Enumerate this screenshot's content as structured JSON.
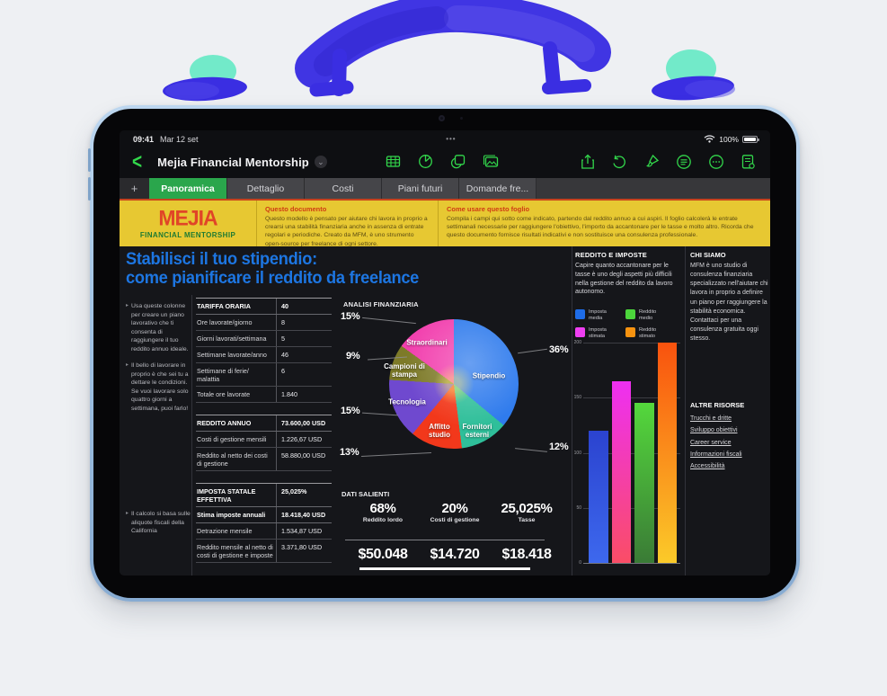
{
  "status_bar": {
    "time": "09:41",
    "date": "Mar 12 set",
    "dots": "•••",
    "battery": "100%"
  },
  "toolbar": {
    "back": "‹",
    "title": "Mejia Financial Mentorship",
    "disclosure": "⌄"
  },
  "tabs": {
    "add": "+",
    "items": [
      {
        "label": "Panoramica",
        "active": true
      },
      {
        "label": "Dettaglio",
        "active": false
      },
      {
        "label": "Costi",
        "active": false
      },
      {
        "label": "Piani futuri",
        "active": false
      },
      {
        "label": "Domande fre...",
        "active": false
      }
    ]
  },
  "banner": {
    "logo_line1": "MEJIA",
    "logo_line2": "FINANCIAL MENTORSHIP",
    "doc_title": "Questo documento",
    "doc_body": "Questo modello è pensato per aiutare chi lavora in proprio a crearsi una stabilità finanziaria anche in assenza di entrate regolari e periodiche. Creato da MFM, è uno strumento open-source per freelance di ogni settore.",
    "use_title": "Come usare questo foglio",
    "use_body": "Compila i campi qui sotto come indicato, partendo dal reddito annuo a cui aspiri. Il foglio calcolerà le entrate settimanali necessarie per raggiungere l'obiettivo, l'importo da accantonare per le tasse e molto altro. Ricorda che questo documento fornisce risultati indicativi e non sostituisce una consulenza professionale."
  },
  "heading": {
    "line1": "Stabilisci il tuo stipendio:",
    "line2": "come pianificare il reddito da freelance"
  },
  "notes": [
    "Usa queste colonne per creare un piano lavorativo che ti consenta di raggiungere il tuo reddito annuo ideale.",
    "Il bello di lavorare in proprio è che sei tu a dettare le condizioni. Se vuoi lavorare solo quattro giorni a settimana, puoi farlo!",
    "Il calcolo si basa sulle aliquote fiscali della California"
  ],
  "tables": {
    "tariffa": {
      "header": {
        "label": "TARIFFA ORARIA",
        "value": "40"
      },
      "rows": [
        {
          "label": "Ore lavorate/giorno",
          "value": "8"
        },
        {
          "label": "Giorni lavorati/settimana",
          "value": "5"
        },
        {
          "label": "Settimane lavorate/anno",
          "value": "46"
        },
        {
          "label": "Settimane di ferie/ malattia",
          "value": "6"
        },
        {
          "label": "Totale ore lavorate",
          "value": "1.840"
        }
      ]
    },
    "reddito": {
      "header": {
        "label": "REDDITO ANNUO",
        "value": "73.600,00 USD"
      },
      "rows": [
        {
          "label": "Costi di gestione mensili",
          "value": "1.226,67 USD"
        },
        {
          "label": "Reddito al netto dei costi di gestione",
          "value": "58.880,00 USD"
        }
      ]
    },
    "imposta": {
      "header": {
        "label": "IMPOSTA STATALE EFFETTIVA",
        "value": "25,025%"
      },
      "subheader": {
        "label": "Stima imposte annuali",
        "value": "18.418,40 USD"
      },
      "rows": [
        {
          "label": "Detrazione mensile",
          "value": "1.534,87 USD"
        },
        {
          "label": "Reddito mensile al netto di costi di gestione e imposte",
          "value": "3.371,80 USD"
        }
      ]
    }
  },
  "dati_salienti": {
    "title": "DATI SALIENTI",
    "stats": [
      {
        "pct": "68%",
        "label": "Reddito lordo",
        "amount": "$50.048"
      },
      {
        "pct": "20%",
        "label": "Costi di gestione",
        "amount": "$14.720"
      },
      {
        "pct": "25,025%",
        "label": "Tasse",
        "amount": "$18.418"
      }
    ]
  },
  "right_panel": {
    "title": "REDDITO E IMPOSTE",
    "body": "Capire quanto accantonare per le tasse è uno degli aspetti più difficili nella gestione del reddito da lavoro autonomo.",
    "legend": [
      {
        "label": "Imposta media",
        "color": "#1e6ce8"
      },
      {
        "label": "Reddito medio",
        "color": "#4cd63c"
      },
      {
        "label": "Imposta stimata",
        "color": "#ef3ff2"
      },
      {
        "label": "Reddito stimato",
        "color": "#f79310"
      }
    ]
  },
  "chi_siamo": {
    "title": "CHI SIAMO",
    "body": "MFM è uno studio di consulenza finanziaria specializzato nell'aiutare chi lavora in proprio a definire un piano per raggiungere la stabilità economica. Contattaci per una consulenza gratuita oggi stesso."
  },
  "altre_risorse": {
    "title": "ALTRE RISORSE",
    "links": [
      "Trucchi e dritte",
      "Sviluppo obiettivi",
      "Career service",
      "Informazioni fiscali",
      "Accessibilità"
    ]
  },
  "chart_data": [
    {
      "type": "pie",
      "title": "ANALISI FINANZIARIA",
      "legend_position": "callout-labels",
      "slices": [
        {
          "label": "Stipendio",
          "value": 36,
          "pct_label": "36%",
          "color": "#2f7bed"
        },
        {
          "label": "Fornitori esterni",
          "value": 12,
          "pct_label": "12%",
          "color": "#2fbf9a"
        },
        {
          "label": "Affitto studio",
          "value": 13,
          "pct_label": "13%",
          "color": "#f2381b"
        },
        {
          "label": "Tecnologia",
          "value": 15,
          "pct_label": "15%",
          "color": "#6f49cf"
        },
        {
          "label": "Campioni di stampa",
          "value": 9,
          "pct_label": "9%",
          "color": "#7d7a28"
        },
        {
          "label": "Straordinari",
          "value": 15,
          "pct_label": "15%",
          "color": "#f23fae"
        }
      ]
    },
    {
      "type": "bar",
      "title": "REDDITO E IMPOSTE",
      "categories": [
        "Imposta media",
        "Reddito medio",
        "Imposta stimata",
        "Reddito stimato"
      ],
      "ylim": [
        0,
        200
      ],
      "yticks": [
        0,
        50,
        100,
        150,
        200
      ],
      "ytick_labels_top_down": [
        "200",
        "150",
        "100",
        "50",
        "0"
      ],
      "grid": true,
      "bars": [
        {
          "name": "Imposta media",
          "value": 120,
          "color_top": "#2b43cf",
          "color_bottom": "#3d68ee"
        },
        {
          "name": "Imposta stimata",
          "value": 165,
          "color_top": "#ee2ff2",
          "color_bottom": "#fa4d66"
        },
        {
          "name": "Reddito medio",
          "value": 145,
          "color_top": "#54d83c",
          "color_bottom": "#3a7b36"
        },
        {
          "name": "Reddito stimato",
          "value": 200,
          "color_top": "#f9520e",
          "color_bottom": "#fbca29"
        }
      ]
    }
  ],
  "colors": {
    "accent_green": "#32d74b",
    "tab_selected_green": "#2aa64c",
    "banner_yellow": "#e7c832",
    "heading_blue": "#1d76e2",
    "logo_red": "#e04527",
    "logo_green": "#1e7a33",
    "device_frame_blue": "#a3c4e4",
    "handle_blue": "#3a2ee2",
    "latch_teal": "#72eac9"
  }
}
